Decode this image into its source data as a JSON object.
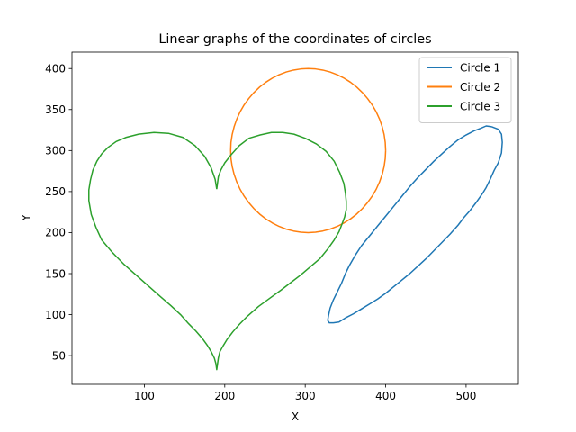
{
  "chart_data": {
    "type": "line",
    "title": "Linear graphs of the coordinates of circles",
    "xlabel": "X",
    "ylabel": "Y",
    "xlim": [
      10,
      565
    ],
    "ylim": [
      15,
      420
    ],
    "xticks": [
      100,
      200,
      300,
      400,
      500
    ],
    "yticks": [
      50,
      100,
      150,
      200,
      250,
      300,
      350,
      400
    ],
    "grid": false,
    "legend_position": "top-right",
    "series": [
      {
        "name": "Circle 1",
        "color": "#1f77b4",
        "x": [
          532,
          540,
          544,
          545,
          544,
          540,
          535,
          530,
          525,
          520,
          512,
          505,
          497,
          490,
          480,
          470,
          460,
          450,
          440,
          430,
          420,
          410,
          400,
          390,
          380,
          370,
          360,
          350,
          342,
          335,
          330,
          328,
          329,
          331,
          335,
          340,
          345,
          350,
          355,
          362,
          370,
          380,
          390,
          400,
          410,
          420,
          430,
          440,
          450,
          460,
          470,
          480,
          490,
          500,
          510,
          518,
          525,
          532
        ],
        "y": [
          329,
          326,
          320,
          310,
          297,
          285,
          276,
          265,
          255,
          247,
          236,
          227,
          218,
          209,
          198,
          188,
          178,
          168,
          159,
          150,
          142,
          134,
          126,
          119,
          113,
          107,
          101,
          96,
          91,
          90,
          90,
          93,
          99,
          108,
          118,
          128,
          138,
          150,
          160,
          172,
          184,
          196,
          208,
          220,
          232,
          244,
          256,
          267,
          277,
          287,
          296,
          305,
          313,
          319,
          324,
          327,
          330,
          329
        ]
      },
      {
        "name": "Circle 2",
        "color": "#ff7f0e",
        "x": [
          400.0,
          399.5,
          398.1,
          395.7,
          392.4,
          388.3,
          383.3,
          377.5,
          371.1,
          364.0,
          356.3,
          348.2,
          339.7,
          330.9,
          321.9,
          312.8,
          303.7,
          294.6,
          285.4,
          276.4,
          267.6,
          259.1,
          251.0,
          243.3,
          236.2,
          229.8,
          224.0,
          219.0,
          214.9,
          211.6,
          209.2,
          207.7,
          207.3,
          207.7,
          209.2,
          211.6,
          214.9,
          219.0,
          224.0,
          229.8,
          236.2,
          243.3,
          251.0,
          259.1,
          267.6,
          276.4,
          285.4,
          294.6,
          303.7,
          312.8,
          321.9,
          330.9,
          339.7,
          348.2,
          356.3,
          364.0,
          371.1,
          377.5,
          383.3,
          388.3,
          392.4,
          395.7,
          398.1,
          399.5,
          400.0
        ],
        "y": [
          300.0,
          309.8,
          319.5,
          329.0,
          338.3,
          347.1,
          355.6,
          363.4,
          370.7,
          377.4,
          383.3,
          388.3,
          392.5,
          395.8,
          398.1,
          399.5,
          400.0,
          399.5,
          398.1,
          395.8,
          392.5,
          388.3,
          383.3,
          377.4,
          370.7,
          363.4,
          355.6,
          347.1,
          338.3,
          329.0,
          319.5,
          309.8,
          300.0,
          290.2,
          280.5,
          271.0,
          261.7,
          252.9,
          244.4,
          236.6,
          229.3,
          222.6,
          216.7,
          211.7,
          207.5,
          204.2,
          201.9,
          200.5,
          200.0,
          200.5,
          201.9,
          204.2,
          207.5,
          211.7,
          216.7,
          222.6,
          229.3,
          236.6,
          244.4,
          252.9,
          261.7,
          271.0,
          280.5,
          290.2,
          300.0
        ]
      },
      {
        "name": "Circle 3",
        "color": "#2ca02c",
        "x": [
          190,
          192,
          195,
          200,
          208,
          218,
          230,
          244,
          258,
          272,
          286,
          300,
          314,
          326,
          336,
          343,
          348,
          350,
          351,
          351,
          349,
          346,
          342,
          336,
          328,
          318,
          306,
          294,
          282,
          270,
          256,
          242,
          228,
          218,
          210,
          203,
          198,
          194,
          192,
          190,
          189,
          187,
          183,
          178,
          172,
          164,
          155,
          145,
          133,
          120,
          105,
          90,
          75,
          60,
          47,
          40,
          34,
          31,
          31,
          33,
          36,
          41,
          47,
          55,
          65,
          77,
          93,
          112,
          130,
          148,
          163,
          175,
          183,
          188,
          190
        ],
        "y": [
          253,
          268,
          276,
          285,
          295,
          306,
          315,
          319,
          322,
          322,
          320,
          315,
          308,
          299,
          287,
          273,
          260,
          248,
          238,
          228,
          219,
          211,
          201,
          191,
          180,
          168,
          158,
          148,
          139,
          130,
          120,
          110,
          98,
          88,
          79,
          70,
          62,
          55,
          47,
          33,
          40,
          47,
          55,
          63,
          71,
          80,
          89,
          100,
          111,
          122,
          135,
          148,
          161,
          176,
          191,
          206,
          222,
          239,
          252,
          264,
          276,
          287,
          296,
          304,
          311,
          316,
          320,
          322,
          321,
          316,
          306,
          293,
          279,
          265,
          253
        ]
      }
    ]
  }
}
